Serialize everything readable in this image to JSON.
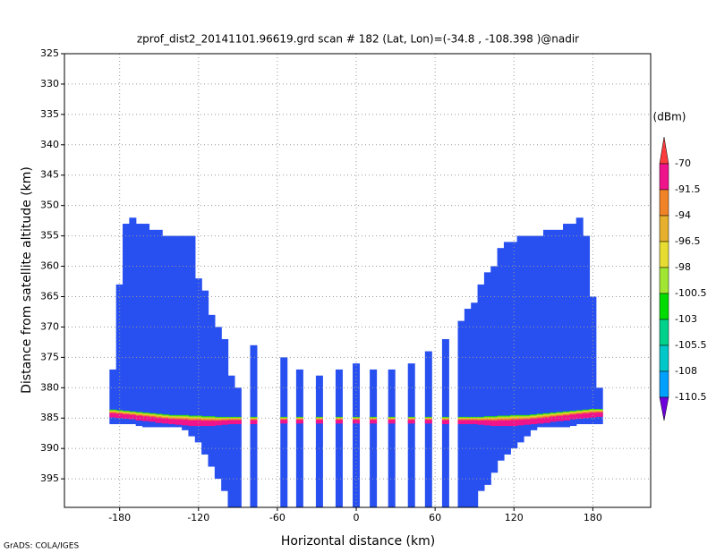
{
  "chart_data": {
    "type": "profile",
    "title": "zprof_dist2_20141101.96619.grd   scan # 182   (Lat, Lon)=(-34.8 , -108.398 )@nadir",
    "x_label": "Horizontal distance (km)",
    "y_label": "Distance from satellite altitude (km)",
    "credit": "GrADS: COLA/IGES",
    "xlim": [
      -222,
      224
    ],
    "ylim": [
      325,
      399.7
    ],
    "y_inverted": true,
    "xticks": [
      -180,
      -120,
      -60,
      0,
      60,
      120,
      180
    ],
    "yticks": [
      325,
      330,
      335,
      340,
      345,
      350,
      355,
      360,
      365,
      370,
      375,
      380,
      385,
      390,
      395
    ],
    "grid": true,
    "fill_color": "#2850f0",
    "surface_color": "#f0148c",
    "beams": {
      "x": [
        -185,
        -180,
        -175,
        -170,
        -165,
        -160,
        -155,
        -150,
        -145,
        -140,
        -135,
        -130,
        -125,
        -120,
        -115,
        -110,
        -105,
        -100,
        -95,
        -90,
        -78,
        -55,
        -43,
        -28,
        -13,
        0,
        13,
        27,
        42,
        55,
        68,
        80,
        85,
        90,
        95,
        100,
        105,
        110,
        115,
        120,
        125,
        130,
        135,
        140,
        145,
        150,
        155,
        160,
        165,
        170,
        175,
        180,
        185
      ],
      "top": [
        377,
        363,
        353,
        352,
        353,
        353,
        354,
        354,
        355,
        355,
        355,
        355,
        355,
        362,
        364,
        368,
        370,
        372,
        378,
        380,
        373,
        375,
        377,
        378,
        377,
        376,
        377,
        377,
        376,
        374,
        372,
        369,
        367,
        366,
        363,
        361,
        360,
        357,
        356,
        356,
        355,
        355,
        355,
        355,
        354,
        354,
        354,
        353,
        353,
        352,
        355,
        365,
        380
      ],
      "bottom": [
        386,
        386,
        386,
        386,
        386.3,
        386.5,
        386.5,
        386.5,
        386.5,
        386.5,
        386.5,
        387,
        388,
        389,
        391,
        393,
        395,
        397,
        399.7,
        399.7,
        399.7,
        399.7,
        399.7,
        399.7,
        399.7,
        399.7,
        399.7,
        399.7,
        399.7,
        399.7,
        399.7,
        399.7,
        399.7,
        399.7,
        397,
        396,
        394,
        392,
        391,
        390,
        389,
        388,
        387,
        386.5,
        386.5,
        386.5,
        386.5,
        386.5,
        386.3,
        386,
        386,
        386,
        386
      ]
    },
    "surface": {
      "top": [
        383.6,
        383.7,
        383.8,
        383.9,
        384,
        384.1,
        384.2,
        384.3,
        384.4,
        384.5,
        384.5,
        384.5,
        384.6,
        384.6,
        384.7,
        384.7,
        384.8,
        384.8,
        384.8,
        384.8,
        384.8,
        384.8,
        384.8,
        384.8,
        384.8,
        384.8,
        384.8,
        384.8,
        384.8,
        384.8,
        384.8,
        384.8,
        384.8,
        384.8,
        384.8,
        384.7,
        384.7,
        384.6,
        384.6,
        384.5,
        384.5,
        384.5,
        384.4,
        384.3,
        384.2,
        384.1,
        384,
        383.9,
        383.8,
        383.7,
        383.6,
        383.5,
        383.5
      ],
      "bottom": [
        384.9,
        385,
        385.1,
        385.2,
        385.4,
        385.5,
        385.6,
        385.8,
        385.9,
        386,
        386.1,
        386.2,
        386.3,
        386.3,
        386.3,
        386.3,
        386.2,
        386.1,
        386,
        386,
        386,
        385.9,
        385.9,
        385.9,
        385.9,
        385.9,
        385.9,
        385.9,
        385.9,
        385.9,
        386,
        386,
        386,
        386,
        386.1,
        386.2,
        386.3,
        386.3,
        386.3,
        386.3,
        386.2,
        386.1,
        386,
        385.9,
        385.8,
        385.6,
        385.5,
        385.4,
        385.2,
        385.1,
        385,
        384.9,
        384.8
      ]
    },
    "colorbar": {
      "unit": "(dBm)",
      "levels": [
        -70,
        -91.5,
        -94,
        -96.5,
        -98,
        -100.5,
        -103,
        -105.5,
        -108,
        -110.5
      ],
      "colors": [
        "#fa3c3c",
        "#f0148c",
        "#f08228",
        "#e6af2d",
        "#e6dc32",
        "#a0e632",
        "#00dc00",
        "#00d28c",
        "#00c8c8",
        "#00a0ff",
        "#1e3cff",
        "#6e00dc"
      ]
    }
  }
}
